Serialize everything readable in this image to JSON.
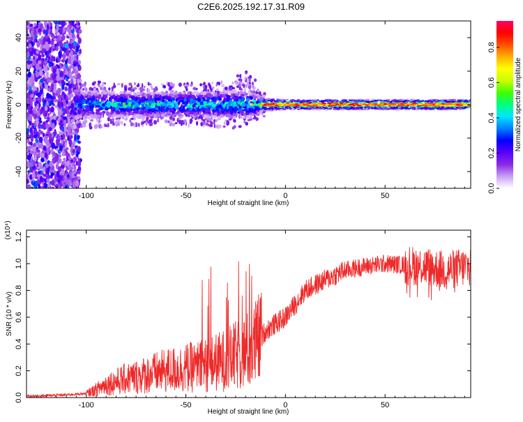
{
  "title": "C2E6.2025.192.17.31.R09",
  "chart_data": [
    {
      "type": "heatmap",
      "xlabel": "Height of straight line (km)",
      "ylabel": "Frequency (Hz)",
      "xlim": [
        -130,
        93
      ],
      "ylim": [
        -50,
        50
      ],
      "xticks": [
        -100,
        -50,
        0,
        50
      ],
      "yticks": [
        -40,
        -20,
        0,
        20,
        40
      ],
      "colorbar": {
        "label": "Normalized spectral amplitude",
        "range": [
          0,
          0.95
        ],
        "ticks": [
          0.0,
          0.2,
          0.4,
          0.6,
          0.8
        ],
        "colormap": [
          "#ffffff",
          "#c8a0f5",
          "#8a2be2",
          "#5a00ff",
          "#0000ff",
          "#0080ff",
          "#00e5ff",
          "#00ff80",
          "#40ff00",
          "#c8ff00",
          "#ffff00",
          "#ffb000",
          "#ff5000",
          "#ff0000",
          "#ff0060"
        ]
      },
      "band_profile": [
        {
          "x": -130,
          "halfwidth_hz": 50,
          "peak": 0.25
        },
        {
          "x": -110,
          "halfwidth_hz": 50,
          "peak": 0.3
        },
        {
          "x": -105,
          "halfwidth_hz": 8,
          "peak": 0.45
        },
        {
          "x": -80,
          "halfwidth_hz": 7,
          "peak": 0.55
        },
        {
          "x": -50,
          "halfwidth_hz": 7,
          "peak": 0.55
        },
        {
          "x": -20,
          "halfwidth_hz": 8,
          "peak": 0.55
        },
        {
          "x": -12,
          "halfwidth_hz": 4,
          "peak": 0.75
        },
        {
          "x": 0,
          "halfwidth_hz": 3,
          "peak": 0.85
        },
        {
          "x": 50,
          "halfwidth_hz": 3,
          "peak": 0.85
        },
        {
          "x": 93,
          "halfwidth_hz": 3,
          "peak": 0.9
        }
      ]
    },
    {
      "type": "line",
      "xlabel": "Height of straight line (km)",
      "ylabel": "SNR (10 * v/v)",
      "y_multiplier": "(x10⁴)",
      "xlim": [
        -130,
        93
      ],
      "ylim": [
        0,
        1.25
      ],
      "xticks": [
        -100,
        -50,
        0,
        50
      ],
      "yticks": [
        0.0,
        0.2,
        0.4,
        0.6,
        0.8,
        1.0,
        1.2
      ],
      "color": "#ee2a2a",
      "series": [
        {
          "x": [
            -130,
            -110,
            -100,
            -95,
            -90,
            -85,
            -80,
            -70,
            -60,
            -50,
            -40,
            -30,
            -20,
            -15,
            -12,
            -10,
            -5,
            0,
            5,
            10,
            20,
            30,
            40,
            50,
            60,
            70,
            80,
            93
          ],
          "values": [
            0.01,
            0.02,
            0.03,
            0.06,
            0.1,
            0.12,
            0.14,
            0.17,
            0.2,
            0.22,
            0.24,
            0.28,
            0.34,
            0.4,
            0.45,
            0.5,
            0.55,
            0.6,
            0.7,
            0.8,
            0.88,
            0.95,
            0.98,
            1.0,
            0.99,
            0.98,
            0.95,
            0.98
          ]
        }
      ]
    }
  ]
}
